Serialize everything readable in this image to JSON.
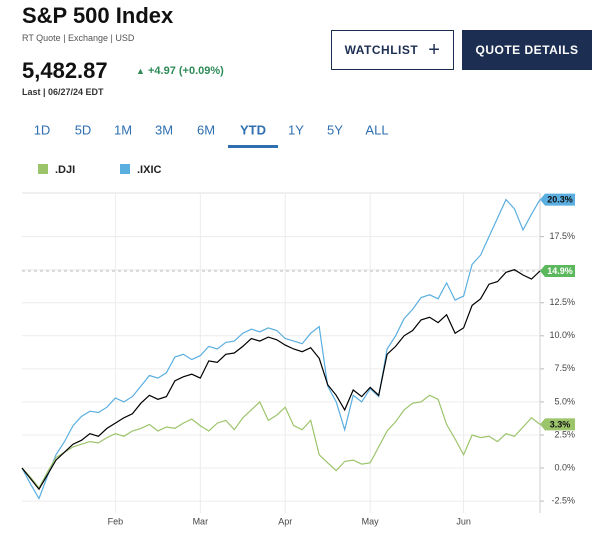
{
  "header": {
    "title": "S&P 500 Index",
    "subtitle": "RT Quote | Exchange | USD",
    "price": "5,482.87",
    "change": "+4.97 (+0.09%)",
    "last": "Last | 06/27/24 EDT",
    "buttons": [
      "WATCHLIST",
      "QUOTE DETAILS"
    ]
  },
  "tabs": {
    "items": [
      "1D",
      "5D",
      "1M",
      "3M",
      "6M",
      "YTD",
      "1Y",
      "5Y",
      "ALL"
    ],
    "active": 5
  },
  "chart_data": {
    "type": "line",
    "categories": [
      null,
      null,
      null,
      null,
      null,
      null,
      null,
      null,
      null,
      null,
      null,
      "Feb",
      null,
      null,
      null,
      null,
      null,
      null,
      null,
      null,
      null,
      "Mar",
      null,
      null,
      null,
      null,
      null,
      null,
      null,
      null,
      null,
      "Apr",
      null,
      null,
      null,
      null,
      null,
      null,
      null,
      null,
      null,
      "May",
      null,
      null,
      null,
      null,
      null,
      null,
      null,
      null,
      null,
      null,
      "Jun",
      null,
      null,
      null,
      null,
      null,
      null,
      null,
      null,
      null
    ],
    "ylim": [
      -3.4,
      20.8
    ],
    "yticks": [
      {
        "value": -2.5,
        "label": "-2.5%"
      },
      {
        "value": 0,
        "label": "0.0%"
      },
      {
        "value": 2.5,
        "label": "2.5%"
      },
      {
        "value": 5,
        "label": "5.0%"
      },
      {
        "value": 7.5,
        "label": "7.5%"
      },
      {
        "value": 10,
        "label": "10.0%"
      },
      {
        "value": 12.5,
        "label": "12.5%"
      },
      {
        "value": 15,
        "label": "15.0%"
      },
      {
        "value": 17.5,
        "label": "17.5%"
      }
    ],
    "grid": true,
    "series": [
      {
        "color": "#000000",
        "badge_color": "#5cb85c",
        "reference_line": true,
        "values": [
          0,
          -0.8,
          -1.6,
          -0.5,
          0.6,
          1.2,
          1.8,
          2.1,
          2.6,
          2.4,
          3.0,
          3.4,
          3.8,
          4.1,
          4.9,
          5.5,
          5.2,
          5.4,
          6.6,
          6.9,
          7.1,
          6.8,
          8.1,
          8.0,
          8.6,
          8.7,
          9.2,
          9.8,
          9.6,
          9.9,
          9.7,
          9.3,
          9.0,
          8.8,
          9.1,
          8.3,
          6.3,
          5.5,
          4.4,
          5.9,
          5.4,
          6.1,
          5.5,
          8.6,
          9.2,
          10.0,
          10.4,
          11.2,
          11.4,
          11.0,
          11.6,
          10.2,
          10.6,
          12.3,
          12.8,
          13.9,
          14.1,
          14.8,
          15.0,
          14.6,
          14.3,
          14.9
        ],
        "value_labels": [
          null,
          null,
          null,
          null,
          null,
          null,
          null,
          null,
          null,
          null,
          null,
          null,
          null,
          null,
          null,
          null,
          null,
          null,
          null,
          null,
          null,
          null,
          null,
          null,
          null,
          null,
          null,
          null,
          null,
          null,
          null,
          null,
          null,
          null,
          null,
          null,
          null,
          null,
          null,
          null,
          null,
          null,
          null,
          null,
          null,
          null,
          null,
          null,
          null,
          null,
          null,
          null,
          null,
          null,
          null,
          null,
          null,
          null,
          null,
          null,
          null,
          "14.9%"
        ]
      },
      {
        "name": ".DJI",
        "color": "#9cc46b",
        "badge_color": "#9cc46b",
        "values": [
          0,
          -0.7,
          -1.5,
          -0.3,
          0.8,
          1.2,
          1.6,
          1.8,
          2.0,
          1.9,
          2.3,
          2.6,
          2.4,
          2.8,
          3.0,
          3.3,
          2.8,
          3.1,
          3.0,
          3.4,
          3.7,
          3.2,
          2.8,
          3.4,
          3.6,
          2.9,
          3.8,
          4.4,
          5.0,
          3.6,
          4.0,
          4.6,
          3.2,
          2.9,
          3.6,
          1.0,
          0.4,
          -0.2,
          0.5,
          0.6,
          0.3,
          0.4,
          1.6,
          2.8,
          3.5,
          4.4,
          4.9,
          5.0,
          5.5,
          5.2,
          3.3,
          2.2,
          1.0,
          2.5,
          2.3,
          2.4,
          2.0,
          2.6,
          2.4,
          3.1,
          3.8,
          3.3
        ],
        "value_labels": [
          null,
          null,
          null,
          null,
          null,
          null,
          null,
          null,
          null,
          null,
          null,
          null,
          null,
          null,
          null,
          null,
          null,
          null,
          null,
          null,
          null,
          null,
          null,
          null,
          null,
          null,
          null,
          null,
          null,
          null,
          null,
          null,
          null,
          null,
          null,
          null,
          null,
          null,
          null,
          null,
          null,
          null,
          null,
          null,
          null,
          null,
          null,
          null,
          null,
          null,
          null,
          null,
          null,
          null,
          null,
          null,
          null,
          null,
          null,
          null,
          null,
          "3.3%"
        ]
      },
      {
        "name": ".IXIC",
        "color": "#5aaee0",
        "badge_color": "#5aaee0",
        "values": [
          0,
          -1.2,
          -2.3,
          -0.6,
          1.0,
          2.0,
          3.2,
          3.9,
          4.3,
          4.2,
          4.6,
          5.3,
          5.0,
          5.4,
          6.2,
          7.0,
          6.8,
          7.2,
          8.4,
          8.6,
          8.2,
          8.5,
          9.2,
          9.0,
          9.5,
          9.6,
          10.2,
          10.5,
          10.3,
          10.6,
          10.4,
          9.8,
          9.6,
          9.4,
          10.2,
          10.7,
          6.2,
          5.0,
          2.9,
          5.5,
          5.0,
          6.0,
          5.4,
          9.0,
          10.0,
          11.3,
          12.0,
          12.9,
          13.1,
          12.8,
          14.0,
          12.7,
          13.0,
          15.4,
          16.1,
          17.5,
          18.9,
          20.3,
          19.6,
          18.0,
          19.2,
          20.3
        ],
        "value_labels": [
          null,
          null,
          null,
          null,
          null,
          null,
          null,
          null,
          null,
          null,
          null,
          null,
          null,
          null,
          null,
          null,
          null,
          null,
          null,
          null,
          null,
          null,
          null,
          null,
          null,
          null,
          null,
          null,
          null,
          null,
          null,
          null,
          null,
          null,
          null,
          null,
          null,
          null,
          null,
          null,
          null,
          null,
          null,
          null,
          null,
          null,
          null,
          null,
          null,
          null,
          null,
          null,
          null,
          null,
          null,
          null,
          null,
          null,
          null,
          null,
          null,
          "20.3%"
        ]
      }
    ]
  }
}
